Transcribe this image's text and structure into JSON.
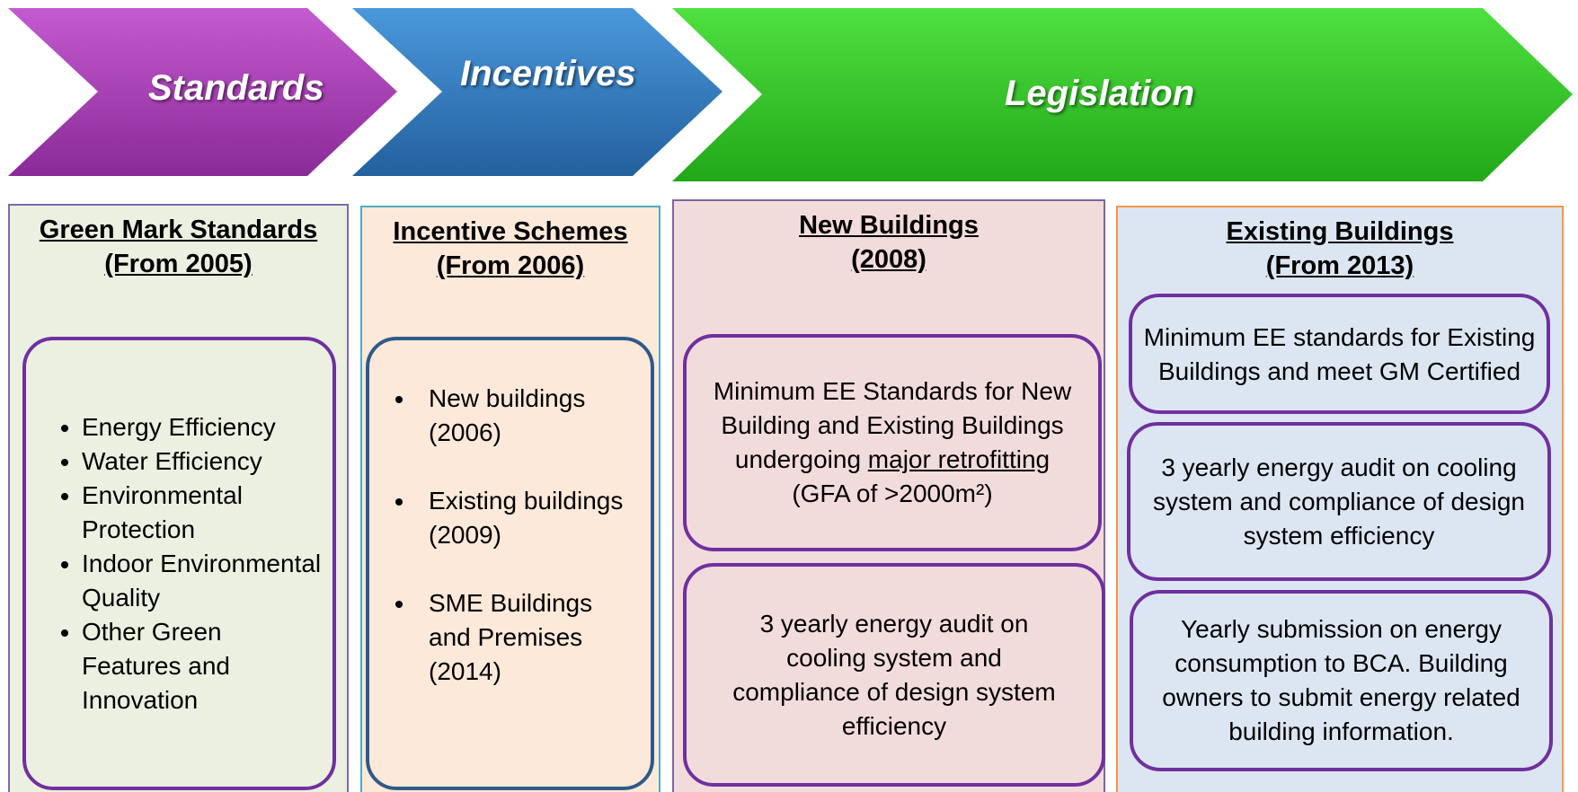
{
  "chevrons": [
    {
      "label": "Standards"
    },
    {
      "label": "Incentives"
    },
    {
      "label": "Legislation"
    }
  ],
  "columns": [
    {
      "heading": [
        "Green Mark Standards",
        "(From 2005)"
      ],
      "boxes": [
        {
          "items": [
            "Energy Efficiency",
            "Water Efficiency",
            "Environmental Protection",
            "Indoor Environmental Quality",
            "Other Green Features and Innovation"
          ]
        }
      ]
    },
    {
      "heading": [
        "Incentive Schemes",
        "(From 2006)"
      ],
      "boxes": [
        {
          "items": [
            "New buildings (2006)",
            "Existing buildings (2009)",
            "SME Buildings and Premises (2014)"
          ]
        }
      ]
    },
    {
      "heading": [
        "New Buildings",
        "(2008)"
      ],
      "boxes": [
        {
          "parts": [
            "Minimum EE Standards for New Building and Existing Buildings undergoing ",
            "major retrofitting",
            "(GFA of >2000m²)"
          ]
        },
        {
          "text": "3 yearly energy audit on cooling system and compliance of design system efficiency"
        }
      ]
    },
    {
      "heading": [
        "Existing Buildings",
        "(From 2013)"
      ],
      "boxes": [
        {
          "text": "Minimum EE standards for Existing Buildings and meet GM Certified"
        },
        {
          "text": "3 yearly energy audit on cooling system and compliance of design system efficiency"
        },
        {
          "text": "Yearly submission on energy consumption to BCA. Building owners to submit energy related building information."
        }
      ]
    }
  ]
}
